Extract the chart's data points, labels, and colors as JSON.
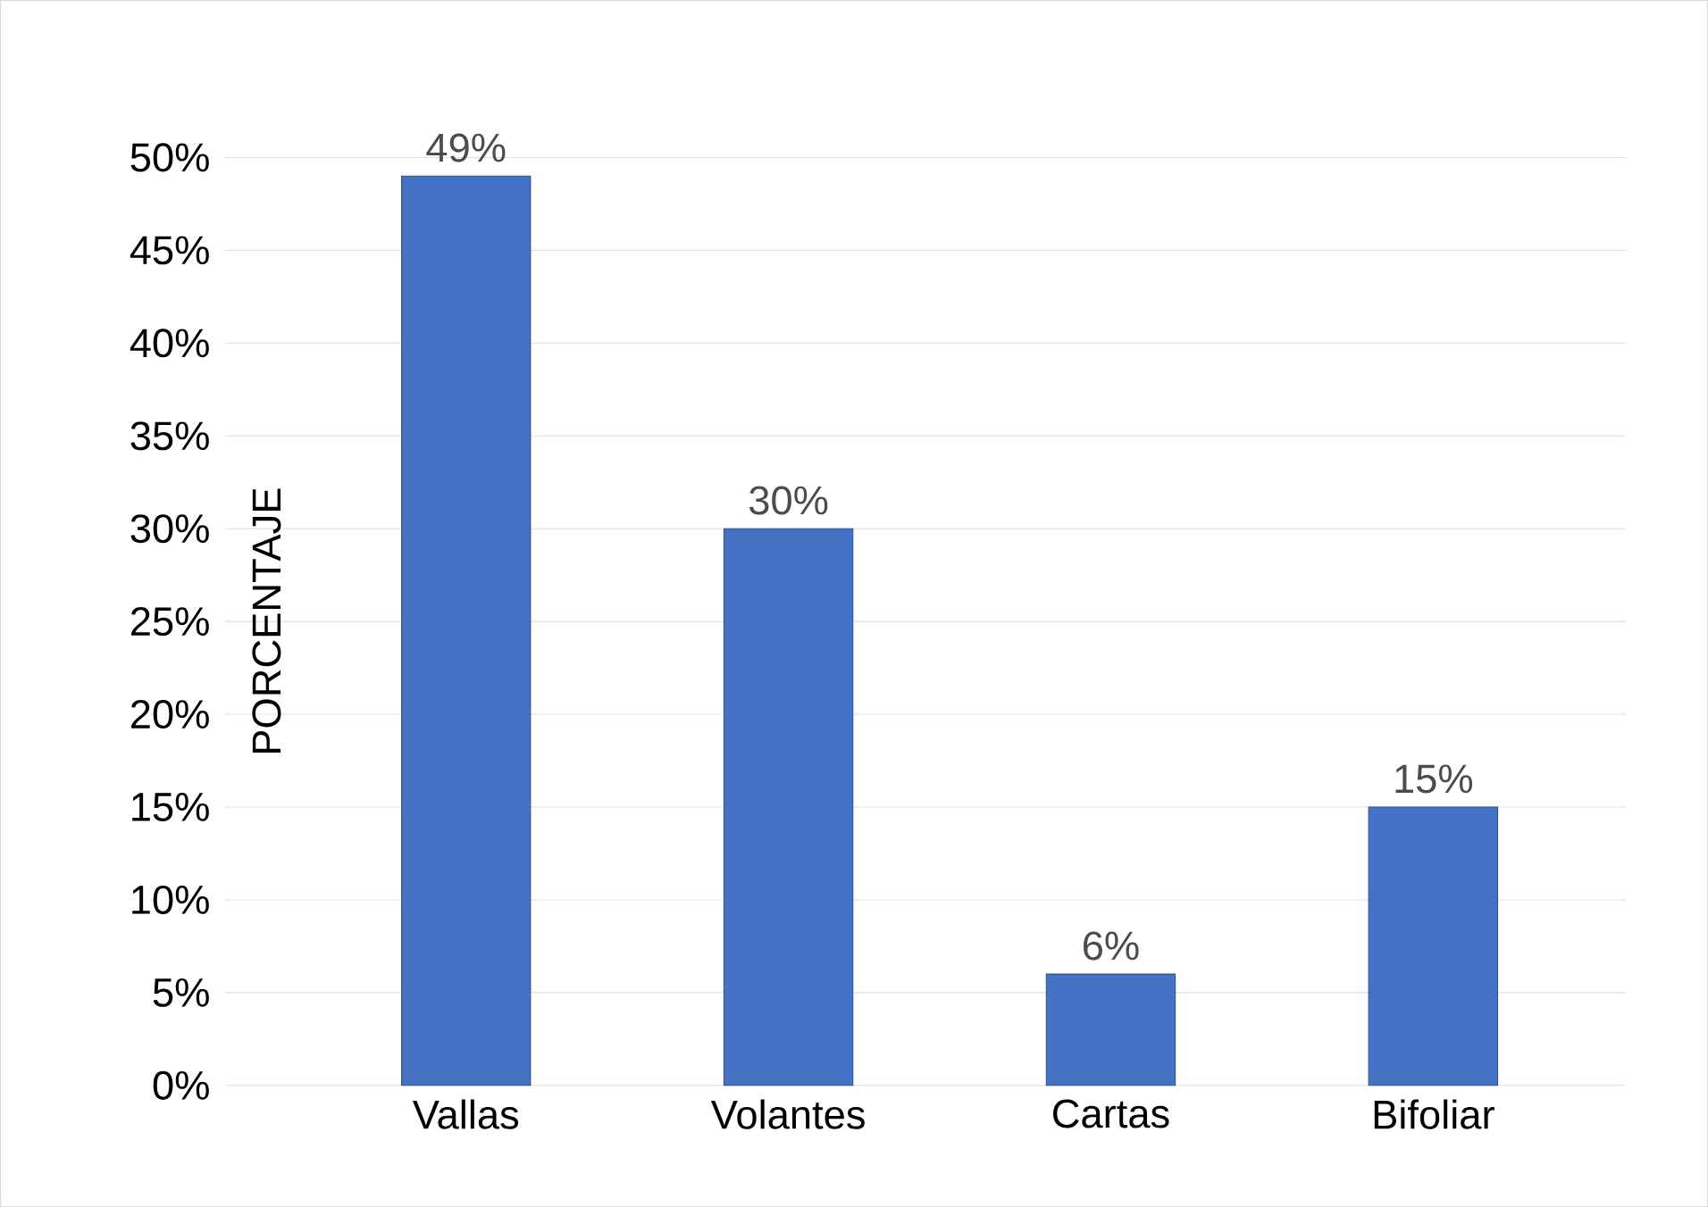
{
  "chart_data": {
    "type": "bar",
    "ylabel": "PORCENTAJE",
    "categories": [
      "Vallas",
      "Volantes",
      "Cartas",
      "Bifoliar"
    ],
    "values": [
      49,
      30,
      6,
      15
    ],
    "color": "#4472c4",
    "value_labels": [
      "49%",
      "30%",
      "6%",
      "15%"
    ],
    "ylim": [
      0,
      50
    ],
    "yticks": [
      {
        "value": 0,
        "label": "0%"
      },
      {
        "value": 5,
        "label": "5%"
      },
      {
        "value": 10,
        "label": "10%"
      },
      {
        "value": 15,
        "label": "15%"
      },
      {
        "value": 20,
        "label": "20%"
      },
      {
        "value": 25,
        "label": "25%"
      },
      {
        "value": 30,
        "label": "30%"
      },
      {
        "value": 35,
        "label": "35%"
      },
      {
        "value": 40,
        "label": "40%"
      },
      {
        "value": 45,
        "label": "45%"
      },
      {
        "value": 50,
        "label": "50%"
      }
    ],
    "grid": "y"
  }
}
